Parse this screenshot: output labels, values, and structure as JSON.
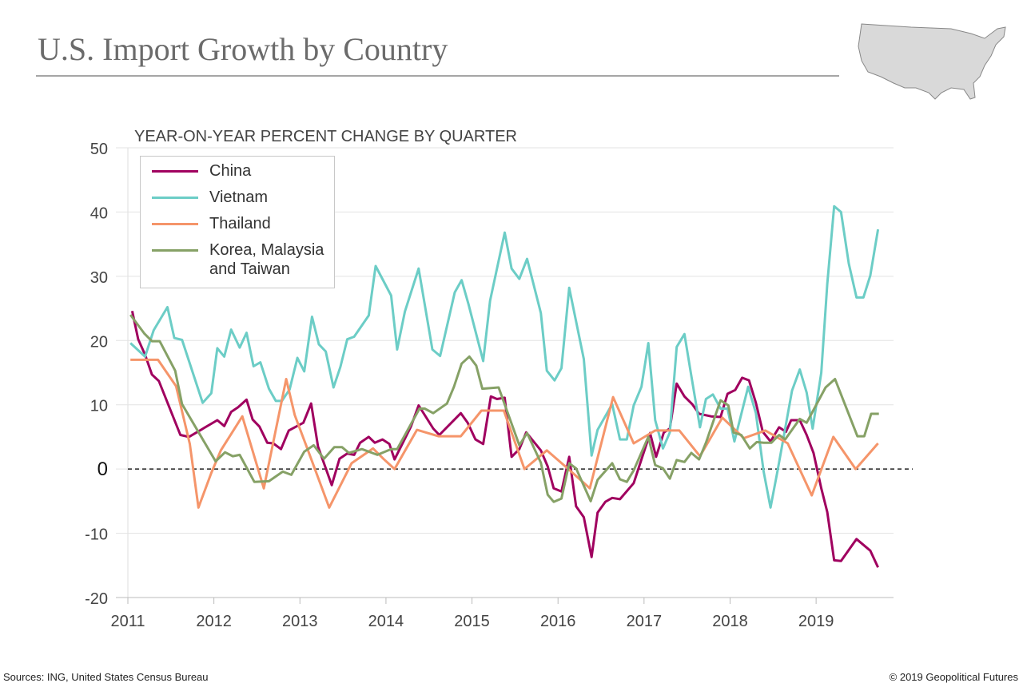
{
  "title": "U.S. Import Growth by Country",
  "source": "Sources: ING, United States Census Bureau",
  "copyright": "© 2019 Geopolitical Futures",
  "chart_data": {
    "type": "line",
    "subtitle": "YEAR-ON-YEAR PERCENT CHANGE BY QUARTER",
    "xlim": [
      2011,
      2019.9
    ],
    "xticks": [
      2011,
      2012,
      2013,
      2014,
      2015,
      2016,
      2017,
      2018,
      2019
    ],
    "ylim": [
      -20,
      50
    ],
    "yticks": [
      -20,
      -10,
      0,
      10,
      20,
      30,
      40,
      50
    ],
    "grid": true,
    "reference_line": 0,
    "legend": "top-left",
    "series": [
      {
        "name": "China",
        "color": "#a0005f",
        "x": [
          2011.05,
          2011.12,
          2011.2,
          2011.28,
          2011.36,
          2011.61,
          2011.71,
          2012.04,
          2012.12,
          2012.2,
          2012.28,
          2012.38,
          2012.45,
          2012.53,
          2012.62,
          2012.69,
          2012.78,
          2012.87,
          2013.04,
          2013.13,
          2013.21,
          2013.37,
          2013.46,
          2013.55,
          2013.63,
          2013.7,
          2013.8,
          2013.87,
          2013.96,
          2014.04,
          2014.1,
          2014.29,
          2014.38,
          2014.55,
          2014.62,
          2014.87,
          2014.95,
          2015.04,
          2015.13,
          2015.22,
          2015.29,
          2015.38,
          2015.46,
          2015.55,
          2015.63,
          2015.8,
          2015.88,
          2015.95,
          2016.04,
          2016.13,
          2016.21,
          2016.3,
          2016.39,
          2016.46,
          2016.55,
          2016.63,
          2016.72,
          2016.88,
          2017.07,
          2017.14,
          2017.23,
          2017.3,
          2017.38,
          2017.47,
          2017.56,
          2017.64,
          2017.78,
          2017.89,
          2017.97,
          2018.06,
          2018.14,
          2018.22,
          2018.3,
          2018.38,
          2018.47,
          2018.57,
          2018.65,
          2018.71,
          2018.81,
          2018.89,
          2018.97,
          2019.06,
          2019.13,
          2019.21,
          2019.29,
          2019.47,
          2019.63,
          2019.72
        ],
        "values": [
          24.6,
          20.2,
          17.8,
          14.7,
          13.7,
          5.3,
          5.0,
          7.6,
          6.7,
          8.9,
          9.6,
          10.8,
          7.7,
          6.6,
          4.1,
          4.0,
          3.1,
          6.0,
          7.2,
          10.2,
          3.5,
          -2.5,
          1.6,
          2.4,
          2.2,
          4.1,
          5.0,
          4.1,
          4.6,
          3.9,
          1.5,
          6.6,
          9.9,
          6.3,
          5.3,
          8.7,
          7.2,
          4.6,
          3.9,
          11.3,
          10.9,
          11.1,
          1.9,
          3.1,
          5.7,
          2.9,
          0.4,
          -3.0,
          -3.5,
          1.9,
          -5.8,
          -7.5,
          -13.7,
          -6.8,
          -5.1,
          -4.5,
          -4.7,
          -2.2,
          5.6,
          1.9,
          5.7,
          6.3,
          13.3,
          11.3,
          10.1,
          8.6,
          8.2,
          8.1,
          11.7,
          12.3,
          14.2,
          13.8,
          10.3,
          5.8,
          4.3,
          6.5,
          5.8,
          7.6,
          7.6,
          5.3,
          2.5,
          -3.0,
          -6.7,
          -14.2,
          -14.3,
          -10.9,
          -12.7,
          -15.3
        ]
      },
      {
        "name": "Vietnam",
        "color": "#6ccdc6",
        "x": [
          2011.03,
          2011.2,
          2011.3,
          2011.46,
          2011.54,
          2011.63,
          2011.87,
          2011.97,
          2012.04,
          2012.12,
          2012.2,
          2012.3,
          2012.38,
          2012.46,
          2012.54,
          2012.64,
          2012.72,
          2012.79,
          2012.88,
          2012.97,
          2013.05,
          2013.14,
          2013.22,
          2013.3,
          2013.39,
          2013.47,
          2013.55,
          2013.63,
          2013.8,
          2013.88,
          2014.06,
          2014.13,
          2014.22,
          2014.38,
          2014.54,
          2014.63,
          2014.8,
          2014.88,
          2014.96,
          2015.13,
          2015.21,
          2015.38,
          2015.46,
          2015.55,
          2015.64,
          2015.8,
          2015.87,
          2015.96,
          2016.04,
          2016.13,
          2016.3,
          2016.39,
          2016.46,
          2016.63,
          2016.72,
          2016.8,
          2016.88,
          2016.97,
          2017.05,
          2017.13,
          2017.22,
          2017.3,
          2017.38,
          2017.47,
          2017.55,
          2017.65,
          2017.72,
          2017.8,
          2017.89,
          2017.97,
          2018.05,
          2018.21,
          2018.3,
          2018.39,
          2018.47,
          2018.55,
          2018.72,
          2018.81,
          2018.89,
          2018.96,
          2019.06,
          2019.13,
          2019.21,
          2019.29,
          2019.38,
          2019.47,
          2019.55,
          2019.63,
          2019.72
        ],
        "values": [
          19.6,
          17.5,
          21.6,
          25.2,
          20.4,
          20.1,
          10.3,
          11.8,
          18.8,
          17.5,
          21.7,
          18.9,
          21.2,
          16.0,
          16.6,
          12.5,
          10.6,
          10.6,
          12.4,
          17.3,
          15.2,
          23.7,
          19.4,
          18.3,
          12.7,
          15.9,
          20.2,
          20.6,
          23.9,
          31.6,
          27.0,
          18.6,
          24.5,
          31.2,
          18.6,
          17.6,
          27.5,
          29.4,
          25.6,
          16.8,
          26.2,
          36.8,
          31.2,
          29.6,
          32.7,
          24.3,
          15.3,
          13.8,
          15.7,
          28.2,
          17.1,
          2.1,
          6.1,
          10.1,
          4.6,
          4.6,
          9.9,
          12.8,
          19.6,
          7.6,
          3.2,
          5.7,
          19.0,
          21.0,
          14.5,
          6.5,
          10.9,
          11.6,
          9.4,
          9.4,
          4.3,
          12.8,
          8.7,
          -0.4,
          -6.0,
          -0.4,
          12.2,
          15.5,
          11.9,
          6.3,
          15.0,
          28.8,
          40.9,
          40.0,
          32.0,
          26.7,
          26.7,
          30.1,
          37.3
        ]
      },
      {
        "name": "Thailand",
        "color": "#f5956a",
        "x": [
          2011.03,
          2011.35,
          2011.56,
          2011.72,
          2011.82,
          2011.97,
          2012.08,
          2012.33,
          2012.58,
          2012.84,
          2012.94,
          2013.08,
          2013.34,
          2013.6,
          2013.85,
          2013.97,
          2014.1,
          2014.36,
          2014.61,
          2014.87,
          2015.11,
          2015.37,
          2015.61,
          2015.87,
          2016.12,
          2016.37,
          2016.64,
          2016.88,
          2017.13,
          2017.41,
          2017.65,
          2017.91,
          2018.16,
          2018.41,
          2018.67,
          2018.95,
          2019.2,
          2019.46,
          2019.72
        ],
        "values": [
          17,
          17,
          12.9,
          3.9,
          -6.0,
          -0.6,
          2.9,
          8.2,
          -3.0,
          14.0,
          8.4,
          3.4,
          -6.0,
          0.9,
          3.2,
          1.6,
          0,
          6.1,
          5.1,
          5.1,
          9.1,
          9.1,
          0,
          2.9,
          0,
          -3.0,
          11.2,
          4.0,
          6.0,
          6.0,
          2.0,
          8.0,
          4.8,
          6.0,
          4.0,
          -4.1,
          5.0,
          0,
          4.0
        ]
      },
      {
        "name": "Korea, Malaysia and Taiwan",
        "color": "#86a166",
        "x": [
          2011.03,
          2011.19,
          2011.28,
          2011.37,
          2011.55,
          2011.63,
          2012.02,
          2012.13,
          2012.22,
          2012.3,
          2012.47,
          2012.64,
          2012.8,
          2012.9,
          2013.05,
          2013.16,
          2013.28,
          2013.4,
          2013.49,
          2013.57,
          2013.72,
          2013.9,
          2014.06,
          2014.13,
          2014.39,
          2014.45,
          2014.55,
          2014.71,
          2014.79,
          2014.88,
          2014.97,
          2015.05,
          2015.12,
          2015.31,
          2015.55,
          2015.64,
          2015.8,
          2015.88,
          2015.95,
          2016.04,
          2016.13,
          2016.21,
          2016.38,
          2016.46,
          2016.63,
          2016.72,
          2016.8,
          2016.88,
          2017.05,
          2017.13,
          2017.22,
          2017.3,
          2017.38,
          2017.47,
          2017.55,
          2017.64,
          2017.72,
          2017.89,
          2017.98,
          2018.04,
          2018.13,
          2018.23,
          2018.31,
          2018.39,
          2018.48,
          2018.57,
          2018.64,
          2018.81,
          2018.89,
          2019.11,
          2019.22,
          2019.48,
          2019.56,
          2019.64,
          2019.73
        ],
        "values": [
          24.0,
          21.1,
          19.9,
          19.9,
          15.3,
          10.1,
          1.2,
          2.6,
          2.0,
          2.2,
          -2.0,
          -1.9,
          -0.4,
          -0.9,
          2.7,
          3.7,
          1.6,
          3.4,
          3.4,
          2.5,
          3.1,
          2.2,
          3.1,
          3.1,
          9.4,
          9.4,
          8.7,
          10.2,
          12.8,
          16.4,
          17.5,
          16.1,
          12.5,
          12.7,
          3.7,
          5.6,
          1.0,
          -4.0,
          -5.1,
          -4.6,
          0.9,
          0.1,
          -5.0,
          -1.7,
          0.9,
          -1.6,
          -2.0,
          -0.2,
          5.0,
          0.6,
          0.1,
          -1.5,
          1.4,
          1.1,
          2.5,
          1.5,
          4.1,
          10.7,
          9.9,
          5.7,
          5.3,
          3.2,
          4.2,
          4.1,
          4.1,
          5.3,
          4.6,
          7.8,
          7.2,
          12.7,
          14.0,
          5.1,
          5.1,
          8.6,
          8.6
        ]
      }
    ]
  }
}
